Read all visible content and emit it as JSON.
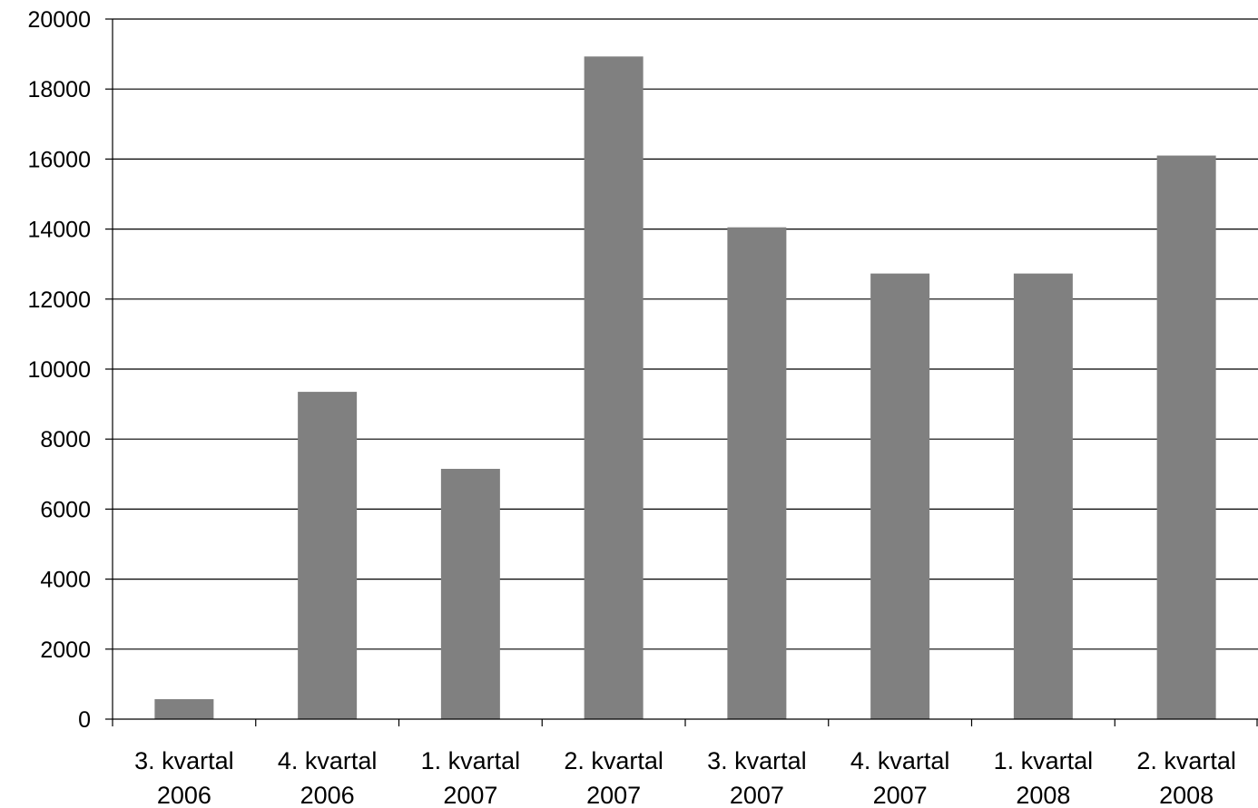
{
  "chart_data": {
    "type": "bar",
    "categories": [
      [
        "3. kvartal",
        "2006"
      ],
      [
        "4. kvartal",
        "2006"
      ],
      [
        "1. kvartal",
        "2007"
      ],
      [
        "2. kvartal",
        "2007"
      ],
      [
        "3. kvartal",
        "2007"
      ],
      [
        "4. kvartal",
        "2007"
      ],
      [
        "1. kvartal",
        "2008"
      ],
      [
        "2. kvartal",
        "2008"
      ]
    ],
    "values": [
      570,
      9350,
      7150,
      18930,
      14050,
      12730,
      12730,
      16100
    ],
    "title": "",
    "xlabel": "",
    "ylabel": "",
    "ylim": [
      0,
      20000
    ],
    "yticks": [
      0,
      2000,
      4000,
      6000,
      8000,
      10000,
      12000,
      14000,
      16000,
      18000,
      20000
    ],
    "grid": true,
    "legend": "none",
    "bar_color": "#808080"
  }
}
